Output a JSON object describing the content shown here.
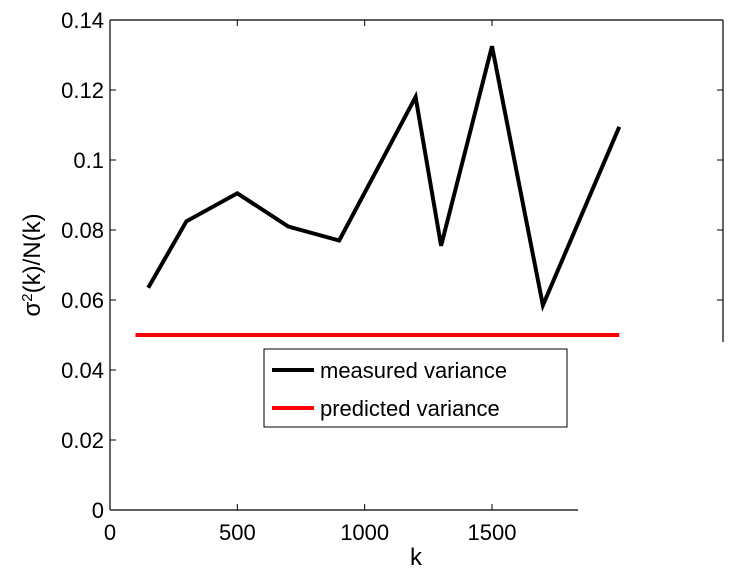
{
  "chart_data": {
    "type": "line",
    "xlabel": "k",
    "ylabel": "σ²(k)/N(k)",
    "ylabel_parts": {
      "base": "σ",
      "sup": "2",
      "rest": "(k)/N(k)"
    },
    "xlim": [
      0,
      1850
    ],
    "ylim": [
      0,
      0.14
    ],
    "x_ticks": [
      0,
      500,
      1000,
      1500
    ],
    "y_ticks": [
      0,
      0.02,
      0.04,
      0.06,
      0.08,
      0.1,
      0.12,
      0.14
    ],
    "x_tick_labels": [
      "0",
      "500",
      "1000",
      "1500"
    ],
    "y_tick_labels": [
      "0",
      "0.02",
      "0.04",
      "0.06",
      "0.08",
      "0.1",
      "0.12",
      "0.14"
    ],
    "grid": false,
    "legend_position": "center",
    "series": [
      {
        "name": "measured variance",
        "color": "#000000",
        "x": [
          150,
          300,
          500,
          700,
          900,
          1200,
          1300,
          1500,
          1700,
          2000
        ],
        "y": [
          0.0635,
          0.0825,
          0.0905,
          0.081,
          0.077,
          0.118,
          0.0755,
          0.1325,
          0.0585,
          0.1095
        ]
      },
      {
        "name": "predicted variance",
        "color": "#ff0000",
        "x": [
          100,
          2000
        ],
        "y": [
          0.05,
          0.05
        ]
      }
    ]
  }
}
